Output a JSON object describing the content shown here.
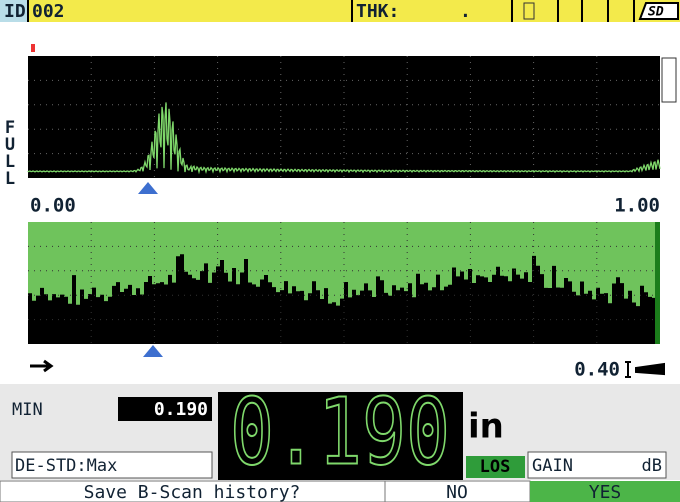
{
  "header": {
    "id_label": "ID",
    "id_value": "002",
    "thk_label": "THK:",
    "thk_value": ".",
    "storage": "SD"
  },
  "a_scan": {
    "side_label": "FULL",
    "range_start": "0.00",
    "range_end": "1.00"
  },
  "b_scan": {
    "value": "0.40"
  },
  "readout": {
    "min_label": "MIN",
    "min_value": "0.190",
    "thickness": "0.190",
    "unit": "in",
    "flag": "LOS",
    "mode": "DE-STD:Max",
    "gain_label": "GAIN",
    "gain_unit": "dB"
  },
  "prompt": {
    "question": "Save B-Scan history?",
    "no": "NO",
    "yes": "YES"
  }
}
